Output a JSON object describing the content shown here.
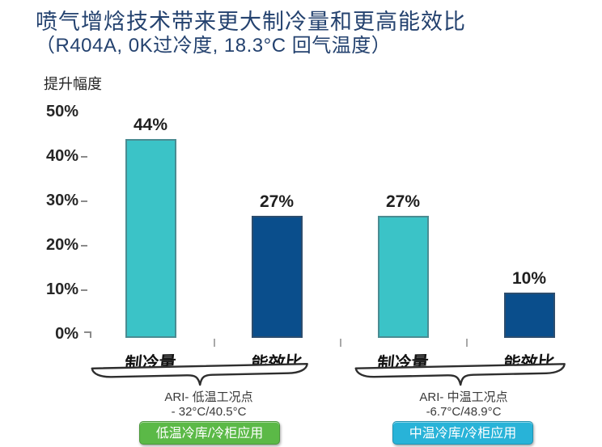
{
  "slide": {
    "title_line1": "喷气增焓技术带来更大制冷量和更高能效比",
    "title_line2": "（R404A, 0K过冷度, 18.3°C 回气温度）"
  },
  "chart_data": {
    "type": "bar",
    "title": "喷气增焓技术带来更大制冷量和更高能效比（R404A, 0K过冷度, 18.3°C 回气温度）",
    "ylabel": "提升幅度",
    "xlabel": "",
    "ylim": [
      0,
      50
    ],
    "ytick_labels": [
      "50%",
      "40%",
      "30%",
      "20%",
      "10%",
      "0%"
    ],
    "grid": false,
    "legend_position": "none",
    "categories": [
      "制冷量",
      "能效比",
      "制冷量",
      "能效比"
    ],
    "values": [
      44,
      27,
      27,
      10
    ],
    "value_labels": [
      "44%",
      "27%",
      "27%",
      "10%"
    ],
    "bar_colors": [
      "#3BC3C7",
      "#0A4E8C",
      "#3BC3C7",
      "#0A4E8C"
    ],
    "bar_border_colors": [
      "#4A8C92",
      "#2C4D6E",
      "#4A8C92",
      "#2C4D6E"
    ],
    "groups": [
      {
        "condition_line1": "ARI- 低温工况点",
        "condition_line2": "- 32°C/40.5°C",
        "badge_label": "低温冷库/冷柜应用",
        "badge_color": "#5BB947"
      },
      {
        "condition_line1": "ARI- 中温工况点",
        "condition_line2": "-6.7°C/48.9°C",
        "badge_label": "中温冷库/冷柜应用",
        "badge_color": "#28B3D8"
      }
    ]
  }
}
